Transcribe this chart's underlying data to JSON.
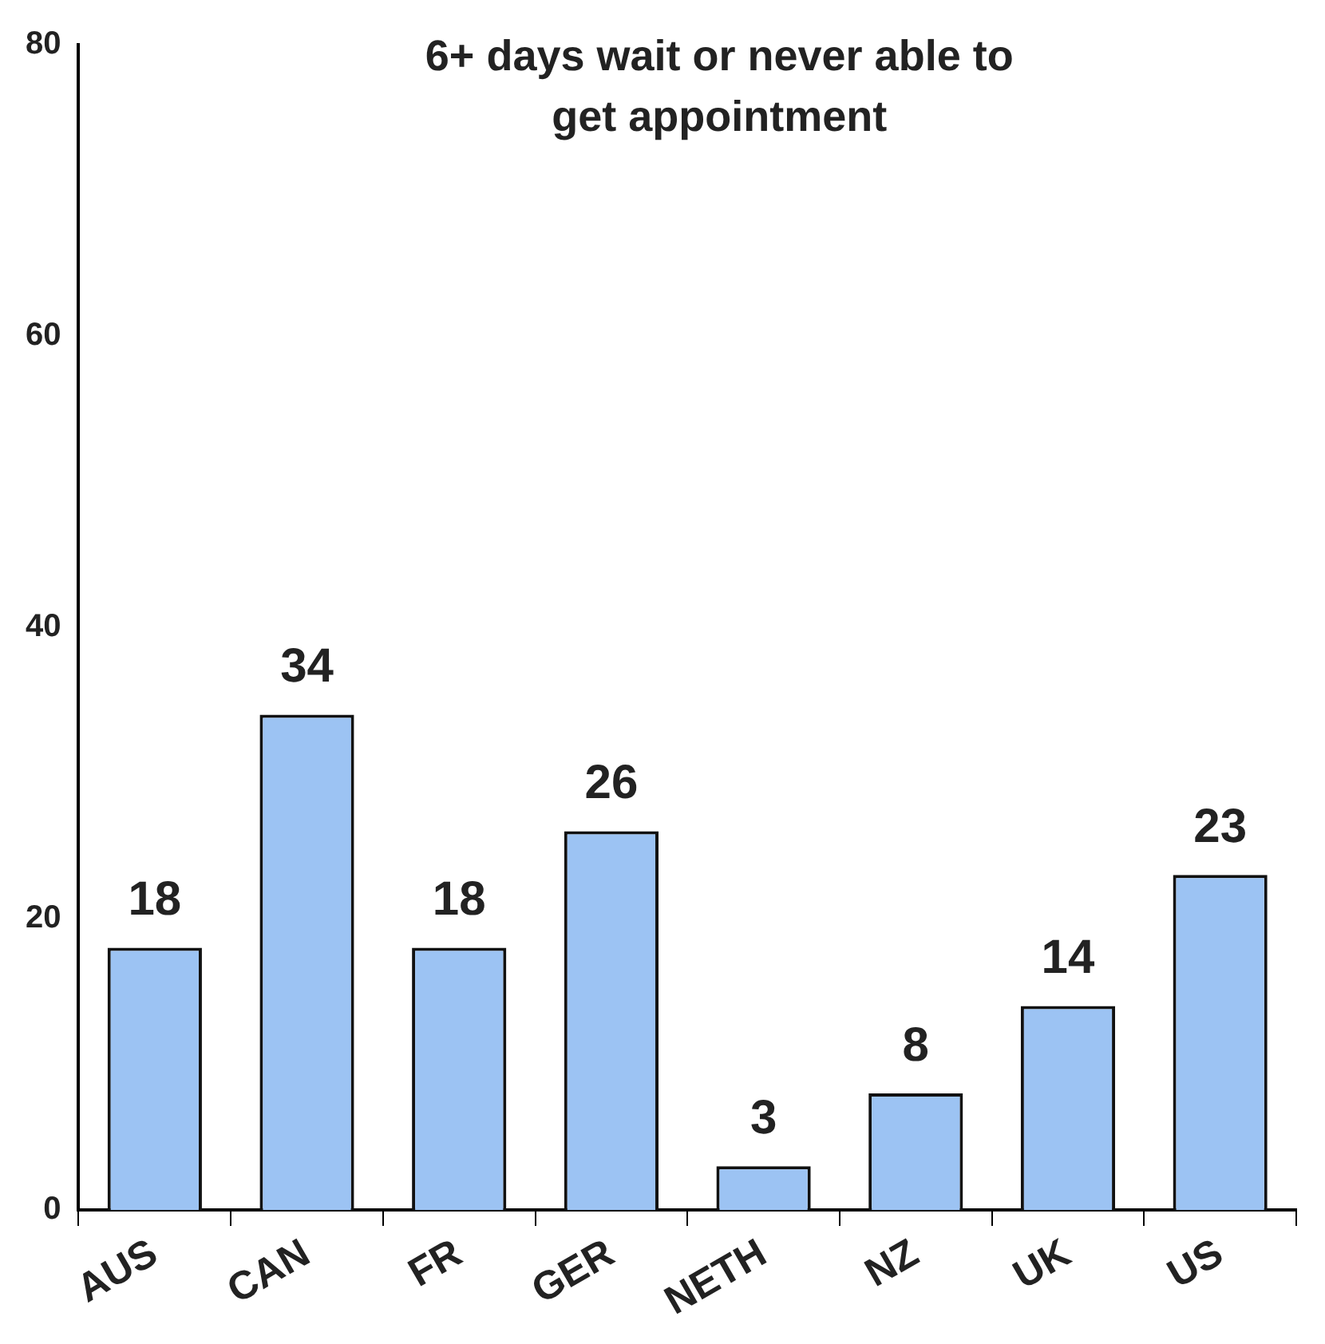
{
  "chart_data": {
    "type": "bar",
    "title": "6+ days wait or never able to get appointment",
    "categories": [
      "AUS",
      "CAN",
      "FR",
      "GER",
      "NETH",
      "NZ",
      "UK",
      "US"
    ],
    "values": [
      18,
      34,
      18,
      26,
      3,
      8,
      14,
      23
    ],
    "color": "#9cc3f3",
    "ylim": [
      0,
      80
    ],
    "yticks": [
      0,
      20,
      40,
      60,
      80
    ],
    "grid": false,
    "legend": false,
    "data_labels": true
  }
}
